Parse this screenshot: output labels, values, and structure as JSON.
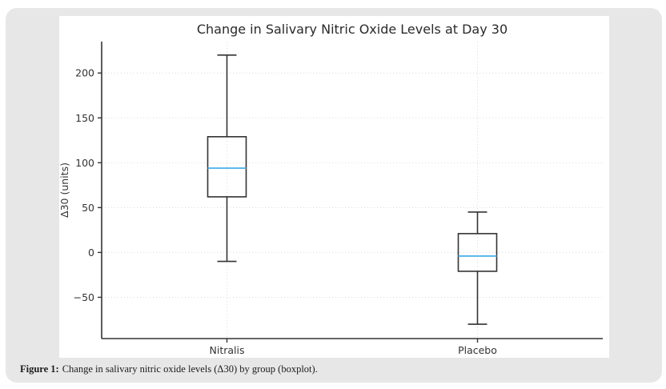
{
  "figure": {
    "caption_prefix": "Figure 1:",
    "caption_text": "Change in salivary nitric oxide levels (Δ30) by group (boxplot)."
  },
  "chart_data": {
    "type": "boxplot",
    "title": "Change in Salivary Nitric Oxide Levels at Day 30",
    "ylabel": "Δ30 (units)",
    "xlabel": "",
    "categories": [
      "Nitralis",
      "Placebo"
    ],
    "series": [
      {
        "name": "Nitralis",
        "whisker_low": -10,
        "q1": 62,
        "median": 94,
        "q3": 129,
        "whisker_high": 220
      },
      {
        "name": "Placebo",
        "whisker_low": -80,
        "q1": -21,
        "median": -4,
        "q3": 21,
        "whisker_high": 45
      }
    ],
    "yticks": [
      {
        "value": 200,
        "label": "200"
      },
      {
        "value": 150,
        "label": "150"
      },
      {
        "value": 100,
        "label": "100"
      },
      {
        "value": 50,
        "label": "50"
      },
      {
        "value": 0,
        "label": "0"
      },
      {
        "value": -50,
        "label": "−50"
      }
    ],
    "ylim": [
      -96,
      235
    ],
    "grid": {
      "horizontal": true,
      "vertical_at_categories": true,
      "style": "dotted"
    },
    "legend": null,
    "colors": {
      "box_stroke": "#333333",
      "median": "#56b4e9",
      "grid": "#d9d9d9",
      "axis": "#333333",
      "title": "#2a2a2a",
      "tick_label": "#333333",
      "panel_background": "#e7e7e7",
      "card_background": "#ffffff",
      "page_background": "#ffffff"
    }
  }
}
